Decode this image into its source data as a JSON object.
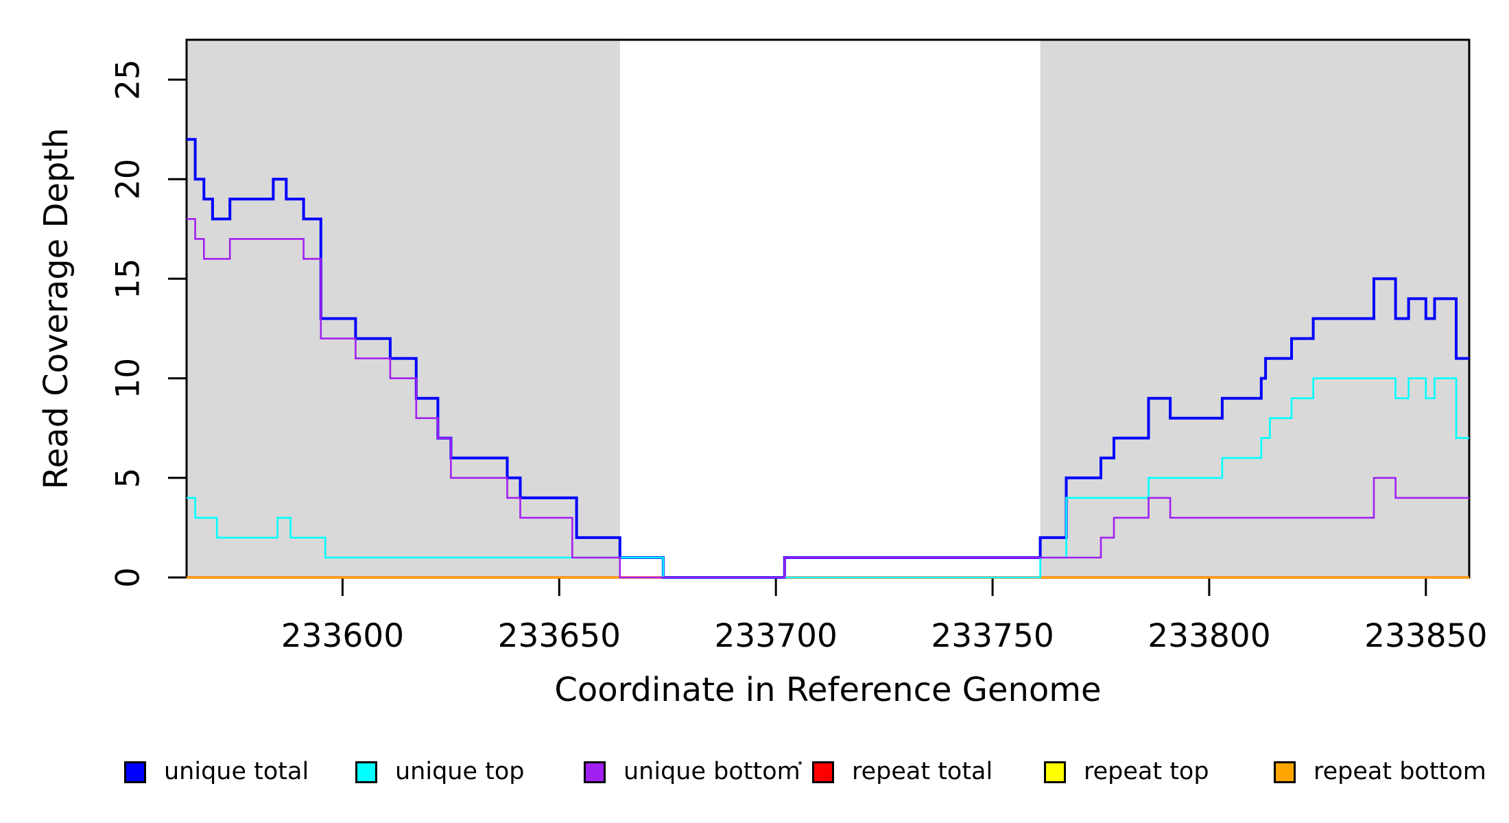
{
  "colors": {
    "background": "#FFFFFF",
    "shaded_region": "#D9D9D9",
    "axis": "#000000",
    "blue": "#0000FF",
    "cyan": "#00FFFF",
    "purple": "#A020F0",
    "red": "#FF0000",
    "yellow": "#FFFF00",
    "orange": "#FFA500"
  },
  "chart_data": {
    "type": "line",
    "style": "step-after",
    "title": "",
    "xlabel": "Coordinate in Reference Genome",
    "ylabel": "Read Coverage Depth",
    "xlim": [
      233564,
      233860
    ],
    "ylim": [
      0,
      27
    ],
    "xticks": [
      233600,
      233650,
      233700,
      233750,
      233800,
      233850
    ],
    "yticks": [
      0,
      5,
      10,
      15,
      20,
      25
    ],
    "grid": false,
    "legend_position": "bottom",
    "shaded_regions": [
      {
        "name": "shaded-left",
        "x0": 233564,
        "x1": 233664,
        "color": "#D9D9D9"
      },
      {
        "name": "shaded-right",
        "x0": 233761,
        "x1": 233860,
        "color": "#D9D9D9"
      }
    ],
    "series": [
      {
        "name": "unique total",
        "color": "#0000FF",
        "line_width": 4,
        "points": [
          [
            233564,
            22
          ],
          [
            233566,
            20
          ],
          [
            233568,
            19
          ],
          [
            233570,
            18
          ],
          [
            233574,
            19
          ],
          [
            233584,
            20
          ],
          [
            233587,
            19
          ],
          [
            233591,
            18
          ],
          [
            233595,
            13
          ],
          [
            233603,
            12
          ],
          [
            233611,
            11
          ],
          [
            233617,
            9
          ],
          [
            233622,
            7
          ],
          [
            233625,
            6
          ],
          [
            233638,
            5
          ],
          [
            233641,
            4
          ],
          [
            233654,
            2
          ],
          [
            233664,
            1
          ],
          [
            233674,
            0
          ],
          [
            233702,
            1
          ],
          [
            233761,
            2
          ],
          [
            233767,
            5
          ],
          [
            233775,
            6
          ],
          [
            233778,
            7
          ],
          [
            233786,
            9
          ],
          [
            233791,
            8
          ],
          [
            233803,
            9
          ],
          [
            233812,
            10
          ],
          [
            233813,
            11
          ],
          [
            233819,
            12
          ],
          [
            233824,
            13
          ],
          [
            233838,
            15
          ],
          [
            233843,
            13
          ],
          [
            233846,
            14
          ],
          [
            233850,
            13
          ],
          [
            233852,
            14
          ],
          [
            233857,
            11
          ]
        ]
      },
      {
        "name": "unique top",
        "color": "#00FFFF",
        "line_width": 2.6,
        "points": [
          [
            233564,
            4
          ],
          [
            233566,
            3
          ],
          [
            233571,
            2
          ],
          [
            233585,
            3
          ],
          [
            233588,
            2
          ],
          [
            233596,
            1
          ],
          [
            233674,
            0
          ],
          [
            233761,
            1
          ],
          [
            233767,
            4
          ],
          [
            233786,
            5
          ],
          [
            233803,
            6
          ],
          [
            233812,
            7
          ],
          [
            233814,
            8
          ],
          [
            233819,
            9
          ],
          [
            233824,
            10
          ],
          [
            233843,
            9
          ],
          [
            233846,
            10
          ],
          [
            233850,
            9
          ],
          [
            233852,
            10
          ],
          [
            233857,
            7
          ]
        ]
      },
      {
        "name": "unique bottom",
        "color": "#A020F0",
        "line_width": 2.6,
        "points": [
          [
            233564,
            18
          ],
          [
            233566,
            17
          ],
          [
            233568,
            16
          ],
          [
            233574,
            17
          ],
          [
            233591,
            16
          ],
          [
            233595,
            12
          ],
          [
            233603,
            11
          ],
          [
            233611,
            10
          ],
          [
            233617,
            8
          ],
          [
            233622,
            7
          ],
          [
            233625,
            5
          ],
          [
            233638,
            4
          ],
          [
            233641,
            3
          ],
          [
            233653,
            1
          ],
          [
            233664,
            0
          ],
          [
            233702,
            1
          ],
          [
            233775,
            2
          ],
          [
            233778,
            3
          ],
          [
            233786,
            4
          ],
          [
            233791,
            3
          ],
          [
            233838,
            5
          ],
          [
            233843,
            4
          ]
        ]
      },
      {
        "name": "repeat total",
        "color": "#FF0000",
        "line_width": 3.5,
        "points": [
          [
            233564,
            0
          ]
        ]
      },
      {
        "name": "repeat top",
        "color": "#FFFF00",
        "line_width": 2.6,
        "points": [
          [
            233564,
            0
          ]
        ]
      },
      {
        "name": "repeat bottom",
        "color": "#FFA500",
        "line_width": 3,
        "points": [
          [
            233564,
            0
          ]
        ]
      }
    ],
    "draw_order": [
      "repeat total",
      "repeat top",
      "repeat bottom",
      "unique total",
      "unique top",
      "unique bottom"
    ],
    "legend": {
      "entries": [
        {
          "label": "unique total",
          "color": "#0000FF"
        },
        {
          "label": "unique top",
          "color": "#00FFFF"
        },
        {
          "label": "unique bottom",
          "color": "#A020F0"
        },
        {
          "label": "repeat total",
          "color": "#FF0000"
        },
        {
          "label": "repeat top",
          "color": "#FFFF00"
        },
        {
          "label": "repeat bottom",
          "color": "#FFA500"
        }
      ]
    }
  }
}
